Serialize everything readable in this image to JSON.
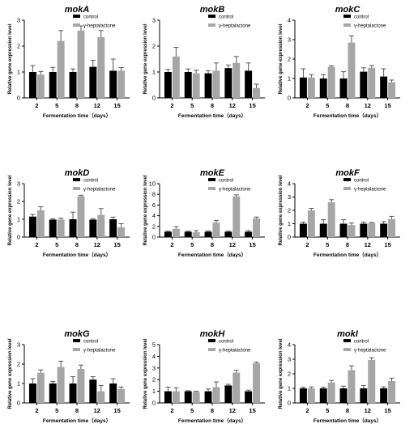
{
  "colors": {
    "control": "#000000",
    "treatment": "#a6a6a6",
    "error_bar": "#555555",
    "axis": "#000000"
  },
  "chart_data": [
    {
      "type": "bar",
      "title": "mokA",
      "xlabel": "Fermentation time（days）",
      "ylabel": "Relative gene expression level",
      "categories": [
        "2",
        "5",
        "8",
        "12",
        "15"
      ],
      "ylim": [
        0,
        3
      ],
      "yticks": [
        0,
        1,
        2,
        3
      ],
      "legend": "top-right",
      "series": [
        {
          "name": "control",
          "values": [
            1.0,
            1.0,
            1.0,
            1.2,
            1.05
          ],
          "errors": [
            0.25,
            0.18,
            0.12,
            0.25,
            0.45
          ]
        },
        {
          "name": "γ-heptalactone",
          "values": [
            0.9,
            2.2,
            2.6,
            2.35,
            1.05
          ],
          "errors": [
            0.12,
            0.4,
            0.18,
            0.25,
            0.12
          ]
        }
      ]
    },
    {
      "type": "bar",
      "title": "mokB",
      "xlabel": "Fermentation time（days）",
      "ylabel": "Relative gene expression level",
      "categories": [
        "2",
        "5",
        "8",
        "12",
        "15"
      ],
      "ylim": [
        0,
        3
      ],
      "yticks": [
        0,
        1,
        2,
        3
      ],
      "legend": "top-right",
      "series": [
        {
          "name": "control",
          "values": [
            1.0,
            1.0,
            0.95,
            1.15,
            1.05
          ],
          "errors": [
            0.1,
            0.12,
            0.1,
            0.12,
            0.3
          ]
        },
        {
          "name": "γ-heptalactone",
          "values": [
            1.6,
            0.95,
            1.05,
            1.35,
            0.38
          ],
          "errors": [
            0.35,
            0.12,
            0.3,
            0.25,
            0.15
          ]
        }
      ]
    },
    {
      "type": "bar",
      "title": "mokC",
      "xlabel": "Fermentation time（days）",
      "ylabel": "Relative gene expression level",
      "categories": [
        "2",
        "5",
        "8",
        "12",
        "15"
      ],
      "ylim": [
        0,
        4
      ],
      "yticks": [
        0,
        1,
        2,
        3,
        4
      ],
      "legend": "top-right",
      "series": [
        {
          "name": "control",
          "values": [
            1.05,
            1.0,
            1.0,
            1.35,
            1.1
          ],
          "errors": [
            0.45,
            0.2,
            0.35,
            0.2,
            0.4
          ]
        },
        {
          "name": "γ-heptalactone",
          "values": [
            1.05,
            1.6,
            2.85,
            1.55,
            0.8
          ],
          "errors": [
            0.15,
            0.05,
            0.35,
            0.12,
            0.12
          ]
        }
      ]
    },
    {
      "type": "bar",
      "title": "mokD",
      "xlabel": "Fermentation time（days）",
      "ylabel": "Relative gene expression level",
      "categories": [
        "2",
        "5",
        "8",
        "12",
        "15"
      ],
      "ylim": [
        0,
        3
      ],
      "yticks": [
        0,
        1,
        2,
        3
      ],
      "legend": "top-right",
      "series": [
        {
          "name": "control",
          "values": [
            1.15,
            0.98,
            1.0,
            0.98,
            1.0
          ],
          "errors": [
            0.12,
            0.05,
            0.4,
            0.05,
            0.12
          ]
        },
        {
          "name": "γ-heptalactone",
          "values": [
            1.5,
            0.98,
            2.3,
            1.25,
            0.55
          ],
          "errors": [
            0.2,
            0.08,
            0.05,
            0.35,
            0.2
          ]
        }
      ]
    },
    {
      "type": "bar",
      "title": "mokE",
      "xlabel": "Fermentation time（days）",
      "ylabel": "Relative gene expression level",
      "categories": [
        "2",
        "5",
        "8",
        "12",
        "15"
      ],
      "ylim": [
        0,
        10
      ],
      "yticks": [
        0,
        2,
        4,
        6,
        8,
        10
      ],
      "legend": "top-right",
      "series": [
        {
          "name": "control",
          "values": [
            1.0,
            1.0,
            1.0,
            1.0,
            1.0
          ],
          "errors": [
            0.1,
            0.1,
            0.15,
            0.1,
            0.2
          ]
        },
        {
          "name": "γ-heptalactone",
          "values": [
            1.55,
            0.9,
            2.7,
            7.6,
            3.5
          ],
          "errors": [
            0.4,
            0.3,
            0.4,
            0.3,
            0.25
          ]
        }
      ]
    },
    {
      "type": "bar",
      "title": "mokF",
      "xlabel": "Fermentation time（days）",
      "ylabel": "Relative gene expression level",
      "categories": [
        "2",
        "5",
        "8",
        "12",
        "15"
      ],
      "ylim": [
        0,
        4
      ],
      "yticks": [
        0,
        1,
        2,
        3,
        4
      ],
      "legend": "top-right",
      "series": [
        {
          "name": "control",
          "values": [
            1.0,
            1.0,
            1.0,
            1.0,
            1.0
          ],
          "errors": [
            0.12,
            0.3,
            0.3,
            0.12,
            0.15
          ]
        },
        {
          "name": "γ-heptalactone",
          "values": [
            2.0,
            2.6,
            0.9,
            1.05,
            1.35
          ],
          "errors": [
            0.15,
            0.2,
            0.15,
            0.05,
            0.2
          ]
        }
      ]
    },
    {
      "type": "bar",
      "title": "mokG",
      "xlabel": "Fermentation time（days）",
      "ylabel": "Relative gene expression level",
      "categories": [
        "2",
        "5",
        "8",
        "12",
        "15"
      ],
      "ylim": [
        0,
        3
      ],
      "yticks": [
        0,
        1,
        2,
        3
      ],
      "legend": "top-right",
      "series": [
        {
          "name": "control",
          "values": [
            1.0,
            1.0,
            1.0,
            1.2,
            1.0
          ],
          "errors": [
            0.25,
            0.1,
            0.35,
            0.15,
            0.25
          ]
        },
        {
          "name": "γ-heptalactone",
          "values": [
            1.55,
            1.85,
            1.75,
            0.6,
            0.72
          ],
          "errors": [
            0.15,
            0.3,
            0.2,
            0.3,
            0.1
          ]
        }
      ]
    },
    {
      "type": "bar",
      "title": "mokH",
      "xlabel": "Fermentation time（days）",
      "ylabel": "Relative gene expression level",
      "categories": [
        "2",
        "5",
        "8",
        "12",
        "15"
      ],
      "ylim": [
        0,
        5
      ],
      "yticks": [
        0,
        1,
        2,
        3,
        4,
        5
      ],
      "legend": "top-right",
      "series": [
        {
          "name": "control",
          "values": [
            1.0,
            1.0,
            1.0,
            1.5,
            1.0
          ],
          "errors": [
            0.35,
            0.05,
            0.2,
            0.1,
            0.1
          ]
        },
        {
          "name": "γ-heptalactone",
          "values": [
            1.0,
            0.95,
            1.35,
            2.6,
            3.4
          ],
          "errors": [
            0.3,
            0.05,
            0.45,
            0.2,
            0.1
          ]
        }
      ]
    },
    {
      "type": "bar",
      "title": "mokI",
      "xlabel": "Fermentation time（days）",
      "ylabel": "Relative gene expression level",
      "categories": [
        "2",
        "5",
        "8",
        "12",
        "15"
      ],
      "ylim": [
        0,
        4
      ],
      "yticks": [
        0,
        1,
        2,
        3,
        4
      ],
      "legend": "top-right",
      "series": [
        {
          "name": "control",
          "values": [
            1.0,
            1.0,
            1.0,
            1.0,
            1.0
          ],
          "errors": [
            0.08,
            0.08,
            0.15,
            0.2,
            0.1
          ]
        },
        {
          "name": "γ-heptalactone",
          "values": [
            1.0,
            1.4,
            2.25,
            2.95,
            1.5
          ],
          "errors": [
            0.1,
            0.15,
            0.3,
            0.15,
            0.2
          ]
        }
      ]
    }
  ]
}
